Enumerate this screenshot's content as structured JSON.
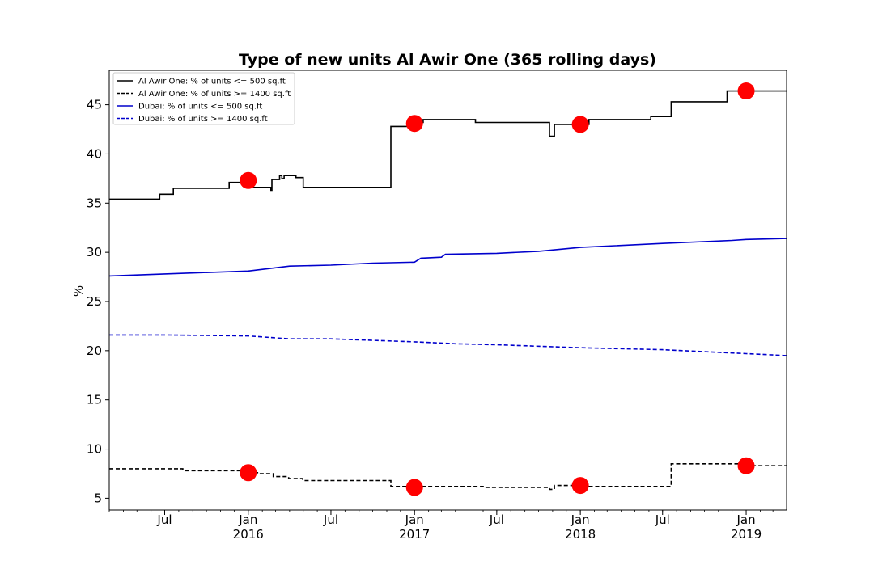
{
  "chart_data": {
    "type": "line",
    "title": "Type of new units Al Awir One (365 rolling days)",
    "xlabel": "",
    "ylabel": "%",
    "ylim": [
      3.8,
      48.5
    ],
    "xlim": [
      "2015-03-01",
      "2019-03-31"
    ],
    "yticks": [
      5,
      10,
      15,
      20,
      25,
      30,
      35,
      40,
      45
    ],
    "xticks": [
      {
        "date": "2015-07-01",
        "label": "Jul"
      },
      {
        "date": "2016-01-01",
        "label": "Jan\n2016"
      },
      {
        "date": "2016-07-01",
        "label": "Jul"
      },
      {
        "date": "2017-01-01",
        "label": "Jan\n2017"
      },
      {
        "date": "2017-07-01",
        "label": "Jul"
      },
      {
        "date": "2018-01-01",
        "label": "Jan\n2018"
      },
      {
        "date": "2018-07-01",
        "label": "Jul"
      },
      {
        "date": "2019-01-01",
        "label": "Jan\n2019"
      }
    ],
    "grid": false,
    "legend_position": "top-left",
    "series": [
      {
        "name": "Al Awir One: % of units <= 500 sq.ft",
        "color": "#000000",
        "style": "solid",
        "step": true,
        "points": [
          [
            "2015-03-01",
            35.4
          ],
          [
            "2015-06-20",
            35.9
          ],
          [
            "2015-07-20",
            36.5
          ],
          [
            "2015-11-20",
            37.1
          ],
          [
            "2016-01-10",
            36.6
          ],
          [
            "2016-02-20",
            36.3
          ],
          [
            "2016-02-22",
            37.4
          ],
          [
            "2016-03-10",
            37.8
          ],
          [
            "2016-03-15",
            37.5
          ],
          [
            "2016-03-20",
            37.8
          ],
          [
            "2016-04-15",
            37.6
          ],
          [
            "2016-05-01",
            36.6
          ],
          [
            "2016-11-10",
            42.8
          ],
          [
            "2016-12-20",
            43.2
          ],
          [
            "2017-01-20",
            43.5
          ],
          [
            "2017-05-15",
            43.2
          ],
          [
            "2017-10-25",
            41.8
          ],
          [
            "2017-11-05",
            43.0
          ],
          [
            "2018-01-20",
            43.5
          ],
          [
            "2018-06-05",
            43.8
          ],
          [
            "2018-07-20",
            45.3
          ],
          [
            "2018-11-20",
            46.4
          ],
          [
            "2019-03-31",
            46.4
          ]
        ]
      },
      {
        "name": "Al Awir One: % of units >= 1400 sq.ft",
        "color": "#000000",
        "style": "dashed",
        "step": true,
        "points": [
          [
            "2015-03-01",
            8.0
          ],
          [
            "2015-08-10",
            7.8
          ],
          [
            "2015-12-25",
            7.6
          ],
          [
            "2016-01-25",
            7.5
          ],
          [
            "2016-02-25",
            7.2
          ],
          [
            "2016-03-30",
            7.0
          ],
          [
            "2016-04-30",
            6.8
          ],
          [
            "2016-11-10",
            6.2
          ],
          [
            "2017-06-01",
            6.1
          ],
          [
            "2017-10-25",
            5.9
          ],
          [
            "2017-11-05",
            6.3
          ],
          [
            "2018-01-01",
            6.2
          ],
          [
            "2018-07-20",
            8.5
          ],
          [
            "2018-12-20",
            8.3
          ],
          [
            "2019-03-31",
            8.3
          ]
        ]
      },
      {
        "name": "Dubai: % of units <= 500 sq.ft",
        "color": "#0000cc",
        "style": "solid",
        "step": false,
        "points": [
          [
            "2015-03-01",
            27.6
          ],
          [
            "2015-07-01",
            27.8
          ],
          [
            "2016-01-01",
            28.1
          ],
          [
            "2016-04-01",
            28.6
          ],
          [
            "2016-07-01",
            28.7
          ],
          [
            "2016-10-01",
            28.9
          ],
          [
            "2017-01-01",
            29.0
          ],
          [
            "2017-01-15",
            29.4
          ],
          [
            "2017-03-01",
            29.5
          ],
          [
            "2017-03-10",
            29.8
          ],
          [
            "2017-07-01",
            29.9
          ],
          [
            "2017-10-01",
            30.1
          ],
          [
            "2018-01-01",
            30.5
          ],
          [
            "2018-07-01",
            30.9
          ],
          [
            "2018-12-01",
            31.2
          ],
          [
            "2019-01-01",
            31.3
          ],
          [
            "2019-03-31",
            31.4
          ]
        ]
      },
      {
        "name": "Dubai: % of units >= 1400 sq.ft",
        "color": "#0000cc",
        "style": "dashed",
        "step": false,
        "points": [
          [
            "2015-03-01",
            21.6
          ],
          [
            "2015-07-01",
            21.6
          ],
          [
            "2016-01-01",
            21.5
          ],
          [
            "2016-04-01",
            21.2
          ],
          [
            "2016-07-01",
            21.2
          ],
          [
            "2017-01-01",
            20.9
          ],
          [
            "2017-04-01",
            20.7
          ],
          [
            "2017-07-01",
            20.6
          ],
          [
            "2018-01-01",
            20.3
          ],
          [
            "2018-07-01",
            20.1
          ],
          [
            "2019-01-01",
            19.7
          ],
          [
            "2019-03-31",
            19.5
          ]
        ]
      }
    ],
    "markers": {
      "color": "#ff0000",
      "points": [
        [
          "2016-01-01",
          37.3
        ],
        [
          "2017-01-01",
          43.1
        ],
        [
          "2018-01-01",
          43.0
        ],
        [
          "2019-01-01",
          46.4
        ],
        [
          "2016-01-01",
          7.6
        ],
        [
          "2017-01-01",
          6.1
        ],
        [
          "2018-01-01",
          6.3
        ],
        [
          "2019-01-01",
          8.3
        ]
      ]
    }
  }
}
